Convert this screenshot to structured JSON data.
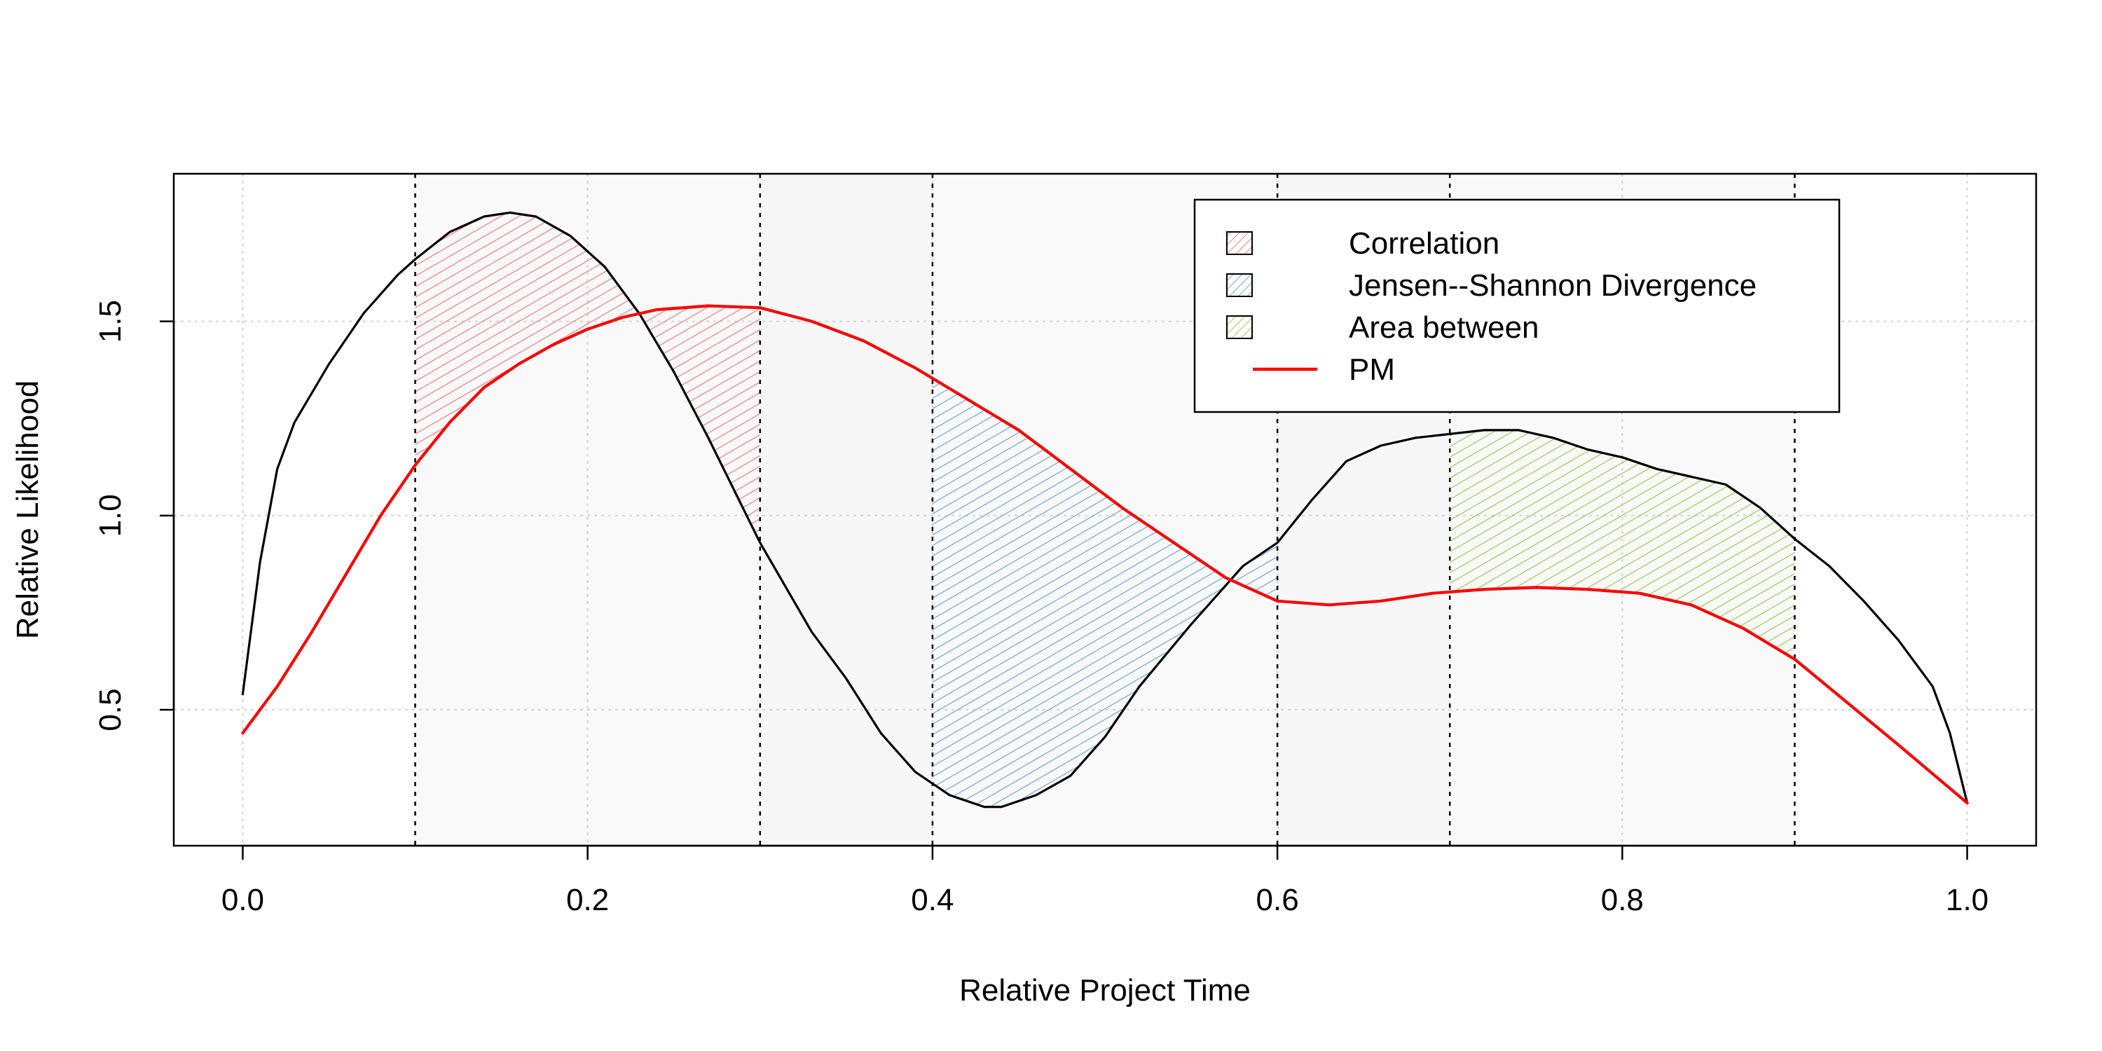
{
  "chart_data": {
    "type": "line",
    "title": "",
    "xlabel": "Relative Project Time",
    "ylabel": "Relative Likelihood",
    "xlim": [
      -0.04,
      1.04
    ],
    "ylim": [
      0.15,
      1.88
    ],
    "x_ticks": [
      0.0,
      0.2,
      0.4,
      0.6,
      0.8,
      1.0
    ],
    "x_tick_labels": [
      "0.0",
      "0.2",
      "0.4",
      "0.6",
      "0.8",
      "1.0"
    ],
    "y_ticks": [
      0.5,
      1.0,
      1.5
    ],
    "y_tick_labels": [
      "0.5",
      "1.0",
      "1.5"
    ],
    "grid": true,
    "legend_position": "top-right",
    "series": [
      {
        "name": "",
        "color": "#000000",
        "x": [
          0.0,
          0.01,
          0.02,
          0.03,
          0.05,
          0.07,
          0.09,
          0.1,
          0.12,
          0.14,
          0.155,
          0.17,
          0.19,
          0.21,
          0.23,
          0.25,
          0.27,
          0.3,
          0.33,
          0.35,
          0.37,
          0.39,
          0.41,
          0.43,
          0.44,
          0.46,
          0.48,
          0.5,
          0.52,
          0.55,
          0.58,
          0.6,
          0.62,
          0.64,
          0.66,
          0.68,
          0.7,
          0.72,
          0.74,
          0.76,
          0.78,
          0.8,
          0.82,
          0.84,
          0.86,
          0.88,
          0.9,
          0.92,
          0.94,
          0.96,
          0.98,
          0.99,
          1.0
        ],
        "y": [
          0.54,
          0.88,
          1.12,
          1.24,
          1.39,
          1.52,
          1.62,
          1.66,
          1.73,
          1.77,
          1.78,
          1.77,
          1.72,
          1.64,
          1.52,
          1.37,
          1.2,
          0.93,
          0.7,
          0.58,
          0.44,
          0.34,
          0.28,
          0.25,
          0.25,
          0.28,
          0.33,
          0.43,
          0.56,
          0.72,
          0.87,
          0.93,
          1.04,
          1.14,
          1.18,
          1.2,
          1.21,
          1.22,
          1.22,
          1.2,
          1.17,
          1.15,
          1.12,
          1.1,
          1.08,
          1.02,
          0.94,
          0.87,
          0.78,
          0.68,
          0.56,
          0.44,
          0.26
        ]
      },
      {
        "name": "PM",
        "color": "#ff0000",
        "x": [
          0.0,
          0.02,
          0.04,
          0.06,
          0.08,
          0.1,
          0.12,
          0.14,
          0.16,
          0.18,
          0.2,
          0.22,
          0.24,
          0.27,
          0.3,
          0.33,
          0.36,
          0.39,
          0.42,
          0.45,
          0.48,
          0.51,
          0.54,
          0.57,
          0.6,
          0.63,
          0.66,
          0.69,
          0.72,
          0.75,
          0.78,
          0.81,
          0.84,
          0.87,
          0.9,
          0.93,
          0.96,
          1.0
        ],
        "y": [
          0.44,
          0.56,
          0.7,
          0.85,
          1.0,
          1.13,
          1.24,
          1.33,
          1.39,
          1.44,
          1.48,
          1.51,
          1.53,
          1.54,
          1.535,
          1.5,
          1.45,
          1.38,
          1.3,
          1.22,
          1.12,
          1.02,
          0.93,
          0.84,
          0.78,
          0.77,
          0.78,
          0.8,
          0.81,
          0.815,
          0.81,
          0.8,
          0.77,
          0.71,
          0.63,
          0.52,
          0.41,
          0.26
        ]
      }
    ],
    "shaded_regions": [
      {
        "x0": 0.3,
        "x1": 0.4,
        "fill": "#f7f7f7"
      },
      {
        "x0": 0.6,
        "x1": 0.7,
        "fill": "#f7f7f7"
      }
    ],
    "hatched_regions": [
      {
        "label": "Correlation",
        "x0": 0.1,
        "x1": 0.3,
        "color": "#f08080"
      },
      {
        "label": "Jensen--Shannon Divergence",
        "x0": 0.4,
        "x1": 0.6,
        "color": "#6fa8dc"
      },
      {
        "label": "Area between",
        "x0": 0.7,
        "x1": 0.9,
        "color": "#9acd55"
      }
    ],
    "vertical_lines": [
      0.1,
      0.3,
      0.4,
      0.6,
      0.7,
      0.9
    ],
    "legend": [
      {
        "label": "Correlation",
        "kind": "hatch",
        "color": "#f08080"
      },
      {
        "label": "Jensen--Shannon Divergence",
        "kind": "hatch",
        "color": "#6fa8dc"
      },
      {
        "label": "Area between",
        "kind": "hatch",
        "color": "#9acd55"
      },
      {
        "label": "PM",
        "kind": "line",
        "color": "#ff0000"
      }
    ]
  }
}
